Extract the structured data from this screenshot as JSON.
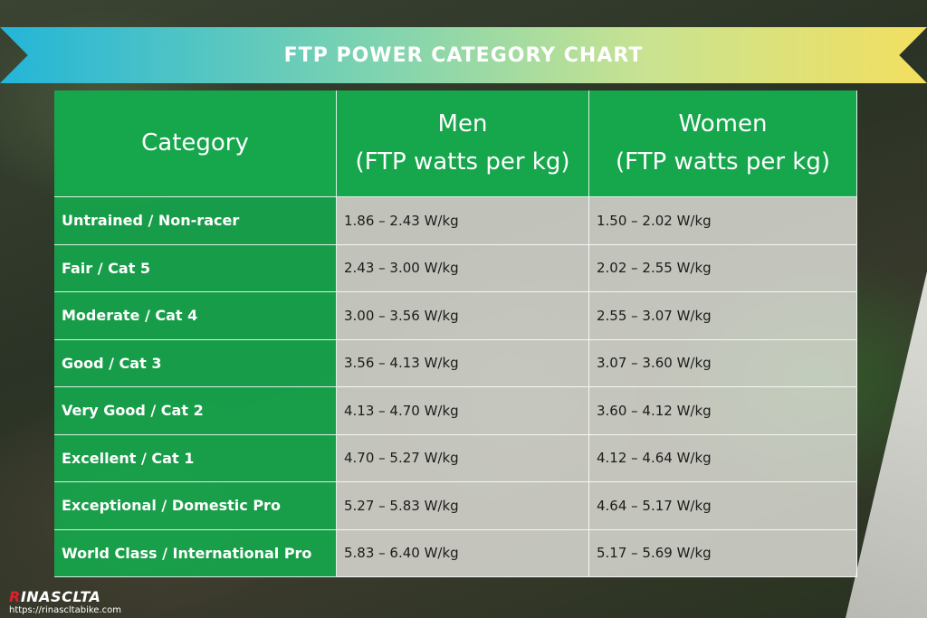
{
  "banner": {
    "title": "FTP POWER CATEGORY CHART"
  },
  "table": {
    "headers": {
      "category": "Category",
      "men_line1": "Men",
      "men_line2": "(FTP watts per kg)",
      "women_line1": "Women",
      "women_line2": "(FTP watts per kg)"
    },
    "rows": [
      {
        "category": "Untrained / Non-racer",
        "men": "1.86 – 2.43 W/kg",
        "women": "1.50 – 2.02 W/kg"
      },
      {
        "category": "Fair / Cat 5",
        "men": "2.43 – 3.00 W/kg",
        "women": "2.02 – 2.55 W/kg"
      },
      {
        "category": "Moderate / Cat 4",
        "men": "3.00 – 3.56 W/kg",
        "women": "2.55 – 3.07 W/kg"
      },
      {
        "category": "Good  / Cat 3",
        "men": "3.56 – 4.13 W/kg",
        "women": "3.07 – 3.60 W/kg"
      },
      {
        "category": "Very Good / Cat 2",
        "men": "4.13 – 4.70 W/kg",
        "women": "3.60 – 4.12 W/kg"
      },
      {
        "category": "Excellent  / Cat 1",
        "men": "4.70 – 5.27 W/kg",
        "women": "4.12 – 4.64 W/kg"
      },
      {
        "category": "Exceptional / Domestic Pro",
        "men": "5.27 – 5.83 W/kg",
        "women": "4.64 – 5.17 W/kg"
      },
      {
        "category": "World Class / International Pro",
        "men": "5.83 – 6.40 W/kg",
        "women": "5.17 – 5.69 W/kg"
      }
    ]
  },
  "footer": {
    "logo_initial": "R",
    "logo_rest": "INASCLTA",
    "url": "https://rinasclta​bike.com"
  },
  "colors": {
    "header_green": "#16a64c",
    "banner_start": "#23b5d8",
    "banner_end": "#f3df5f",
    "logo_red": "#e0202a"
  }
}
